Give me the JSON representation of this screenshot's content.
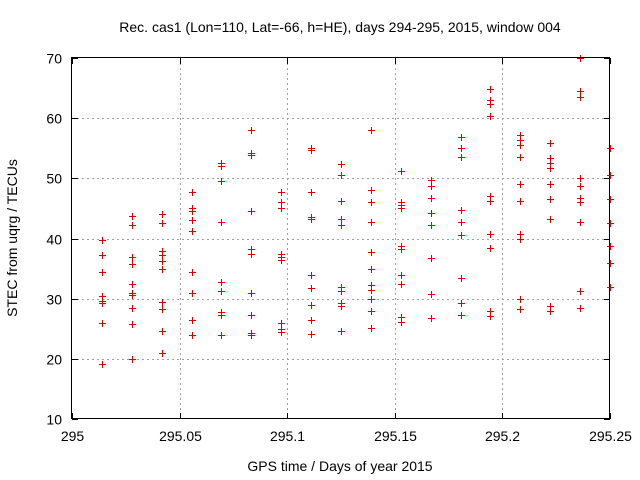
{
  "chart_data": {
    "type": "scatter",
    "title": "Rec. cas1 (Lon=110, Lat=-66, h=HE), days 294-295, 2015, window 004",
    "xlabel": "GPS time / Days of year 2015",
    "ylabel": "STEC from uqrg / TECUs",
    "xlim": [
      295,
      295.25
    ],
    "ylim": [
      10,
      70
    ],
    "x_ticks": [
      "295",
      "295.05",
      "295.1",
      "295.15",
      "295.2",
      "295.25"
    ],
    "y_ticks": [
      "10",
      "20",
      "30",
      "40",
      "50",
      "60",
      "70"
    ],
    "grid": true,
    "marker": "plus",
    "color": "#dd0000",
    "series": [
      {
        "name": "STEC",
        "points": [
          [
            295.0139,
            39.8
          ],
          [
            295.0139,
            37.2
          ],
          [
            295.0139,
            34.5
          ],
          [
            295.0139,
            30.5
          ],
          [
            295.0139,
            29.6
          ],
          [
            295.0139,
            29.2
          ],
          [
            295.0139,
            26.0
          ],
          [
            295.0139,
            19.1
          ],
          [
            295.0278,
            43.8
          ],
          [
            295.0278,
            42.3
          ],
          [
            295.0278,
            37.0
          ],
          [
            295.0278,
            35.8
          ],
          [
            295.0278,
            32.5
          ],
          [
            295.0278,
            31.0
          ],
          [
            295.0278,
            30.6
          ],
          [
            295.0278,
            28.4
          ],
          [
            295.0278,
            25.8
          ],
          [
            295.0278,
            20.0
          ],
          [
            295.0417,
            44.0
          ],
          [
            295.0417,
            42.5
          ],
          [
            295.0417,
            38.0
          ],
          [
            295.0417,
            37.3
          ],
          [
            295.0417,
            36.3
          ],
          [
            295.0417,
            35.0
          ],
          [
            295.0417,
            29.5
          ],
          [
            295.0417,
            28.2
          ],
          [
            295.0417,
            24.6
          ],
          [
            295.0417,
            21.0
          ],
          [
            295.0556,
            47.8
          ],
          [
            295.0556,
            45.0
          ],
          [
            295.0556,
            44.5
          ],
          [
            295.0556,
            43.0
          ],
          [
            295.0556,
            41.2
          ],
          [
            295.0556,
            34.5
          ],
          [
            295.0556,
            31.0
          ],
          [
            295.0556,
            26.5
          ],
          [
            295.0556,
            24.0
          ],
          [
            295.0694,
            52.5
          ],
          [
            295.0694,
            52.0
          ],
          [
            295.0694,
            49.5
          ],
          [
            295.0694,
            42.8
          ],
          [
            295.0694,
            32.8
          ],
          [
            295.0694,
            31.2
          ],
          [
            295.0694,
            27.8
          ],
          [
            295.0694,
            27.3
          ],
          [
            295.0694,
            24.0
          ],
          [
            295.0833,
            58.0
          ],
          [
            295.0833,
            54.2
          ],
          [
            295.0833,
            53.8
          ],
          [
            295.0833,
            44.6
          ],
          [
            295.0833,
            38.2
          ],
          [
            295.0833,
            37.4
          ],
          [
            295.0833,
            31.0
          ],
          [
            295.0833,
            27.3
          ],
          [
            295.0833,
            24.3
          ],
          [
            295.0833,
            24.0
          ],
          [
            295.0972,
            47.8
          ],
          [
            295.0972,
            46.0
          ],
          [
            295.0972,
            45.0
          ],
          [
            295.0972,
            37.5
          ],
          [
            295.0972,
            37.0
          ],
          [
            295.0972,
            36.5
          ],
          [
            295.0972,
            26.0
          ],
          [
            295.0972,
            25.0
          ],
          [
            295.0972,
            24.5
          ],
          [
            295.1111,
            55.0
          ],
          [
            295.1111,
            54.7
          ],
          [
            295.1111,
            47.8
          ],
          [
            295.1111,
            43.5
          ],
          [
            295.1111,
            43.2
          ],
          [
            295.1111,
            34.0
          ],
          [
            295.1111,
            31.8
          ],
          [
            295.1111,
            29.0
          ],
          [
            295.1111,
            26.5
          ],
          [
            295.1111,
            24.2
          ],
          [
            295.125,
            52.3
          ],
          [
            295.125,
            50.5
          ],
          [
            295.125,
            46.2
          ],
          [
            295.125,
            43.2
          ],
          [
            295.125,
            42.3
          ],
          [
            295.125,
            32.0
          ],
          [
            295.125,
            31.3
          ],
          [
            295.125,
            29.3
          ],
          [
            295.125,
            28.8
          ],
          [
            295.125,
            24.6
          ],
          [
            295.1389,
            58.1
          ],
          [
            295.1389,
            48.0
          ],
          [
            295.1389,
            46.0
          ],
          [
            295.1389,
            42.8
          ],
          [
            295.1389,
            37.8
          ],
          [
            295.1389,
            35.0
          ],
          [
            295.1389,
            32.3
          ],
          [
            295.1389,
            31.5
          ],
          [
            295.1389,
            30.0
          ],
          [
            295.1389,
            28.0
          ],
          [
            295.1389,
            25.2
          ],
          [
            295.1528,
            51.3
          ],
          [
            295.1528,
            46.0
          ],
          [
            295.1528,
            45.5
          ],
          [
            295.1528,
            45.0
          ],
          [
            295.1528,
            38.8
          ],
          [
            295.1528,
            38.2
          ],
          [
            295.1528,
            34.0
          ],
          [
            295.1528,
            32.5
          ],
          [
            295.1528,
            27.0
          ],
          [
            295.1528,
            26.2
          ],
          [
            295.1667,
            49.8
          ],
          [
            295.1667,
            48.8
          ],
          [
            295.1667,
            46.8
          ],
          [
            295.1667,
            44.2
          ],
          [
            295.1667,
            42.3
          ],
          [
            295.1667,
            36.8
          ],
          [
            295.1667,
            30.7
          ],
          [
            295.1667,
            26.8
          ],
          [
            295.1806,
            56.8
          ],
          [
            295.1806,
            55.0
          ],
          [
            295.1806,
            53.5
          ],
          [
            295.1806,
            44.7
          ],
          [
            295.1806,
            42.8
          ],
          [
            295.1806,
            40.5
          ],
          [
            295.1806,
            33.5
          ],
          [
            295.1806,
            29.3
          ],
          [
            295.1806,
            27.3
          ],
          [
            295.1944,
            64.8
          ],
          [
            295.1944,
            63.0
          ],
          [
            295.1944,
            62.3
          ],
          [
            295.1944,
            60.3
          ],
          [
            295.1944,
            47.0
          ],
          [
            295.1944,
            46.2
          ],
          [
            295.1944,
            40.8
          ],
          [
            295.1944,
            38.5
          ],
          [
            295.1944,
            28.0
          ],
          [
            295.1944,
            27.2
          ],
          [
            295.2083,
            57.2
          ],
          [
            295.2083,
            56.3
          ],
          [
            295.2083,
            55.5
          ],
          [
            295.2083,
            53.5
          ],
          [
            295.2083,
            49.0
          ],
          [
            295.2083,
            46.2
          ],
          [
            295.2083,
            40.8
          ],
          [
            295.2083,
            40.0
          ],
          [
            295.2083,
            30.0
          ],
          [
            295.2083,
            28.3
          ],
          [
            295.2222,
            55.8
          ],
          [
            295.2222,
            53.3
          ],
          [
            295.2222,
            52.5
          ],
          [
            295.2222,
            51.8
          ],
          [
            295.2222,
            49.0
          ],
          [
            295.2222,
            46.5
          ],
          [
            295.2222,
            43.2
          ],
          [
            295.2222,
            28.8
          ],
          [
            295.2222,
            28.0
          ],
          [
            295.2361,
            70.0
          ],
          [
            295.2361,
            64.5
          ],
          [
            295.2361,
            63.5
          ],
          [
            295.2361,
            50.0
          ],
          [
            295.2361,
            48.8
          ],
          [
            295.2361,
            46.8
          ],
          [
            295.2361,
            46.0
          ],
          [
            295.2361,
            42.8
          ],
          [
            295.2361,
            31.2
          ],
          [
            295.2361,
            28.5
          ],
          [
            295.25,
            55.0
          ],
          [
            295.25,
            50.5
          ],
          [
            295.25,
            46.5
          ],
          [
            295.25,
            42.5
          ],
          [
            295.25,
            38.8
          ],
          [
            295.25,
            36.0
          ],
          [
            295.25,
            32.0
          ]
        ]
      }
    ]
  }
}
